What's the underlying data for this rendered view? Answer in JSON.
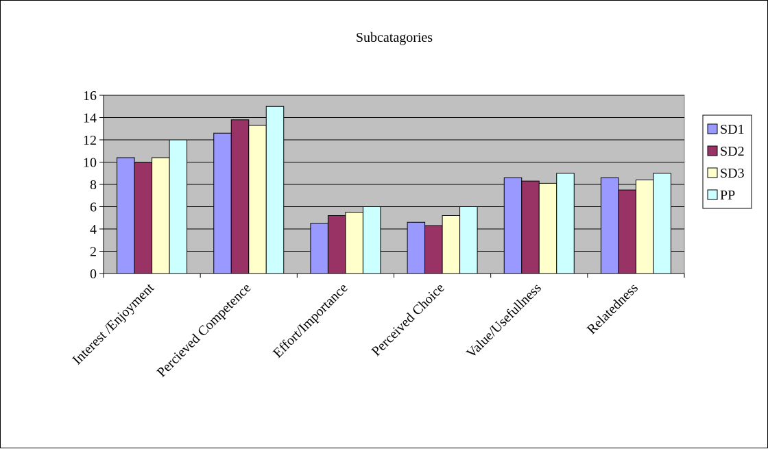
{
  "chart_data": {
    "type": "bar",
    "title": "Subcatagories",
    "xlabel": "",
    "ylabel": "",
    "ylim": [
      0,
      16
    ],
    "yticks": [
      0,
      2,
      4,
      6,
      8,
      10,
      12,
      14,
      16
    ],
    "grid": true,
    "legend_position": "right",
    "plot_background": "#c0c0c0",
    "categories": [
      "Interest /Enjoyment",
      "Percieved Competence",
      "Effort/Importance",
      "Perceived Choice",
      "Value/Usefullness",
      "Relatedness"
    ],
    "series": [
      {
        "name": "SD1",
        "color": "#9999ff",
        "values": [
          10.4,
          12.6,
          4.5,
          4.6,
          8.6,
          8.6
        ]
      },
      {
        "name": "SD2",
        "color": "#993366",
        "values": [
          10.0,
          13.8,
          5.2,
          4.3,
          8.3,
          7.5
        ]
      },
      {
        "name": "SD3",
        "color": "#ffffcc",
        "values": [
          10.4,
          13.3,
          5.5,
          5.2,
          8.1,
          8.4
        ]
      },
      {
        "name": "PP",
        "color": "#ccffff",
        "values": [
          12.0,
          15.0,
          6.0,
          6.0,
          9.0,
          9.0
        ]
      }
    ]
  }
}
